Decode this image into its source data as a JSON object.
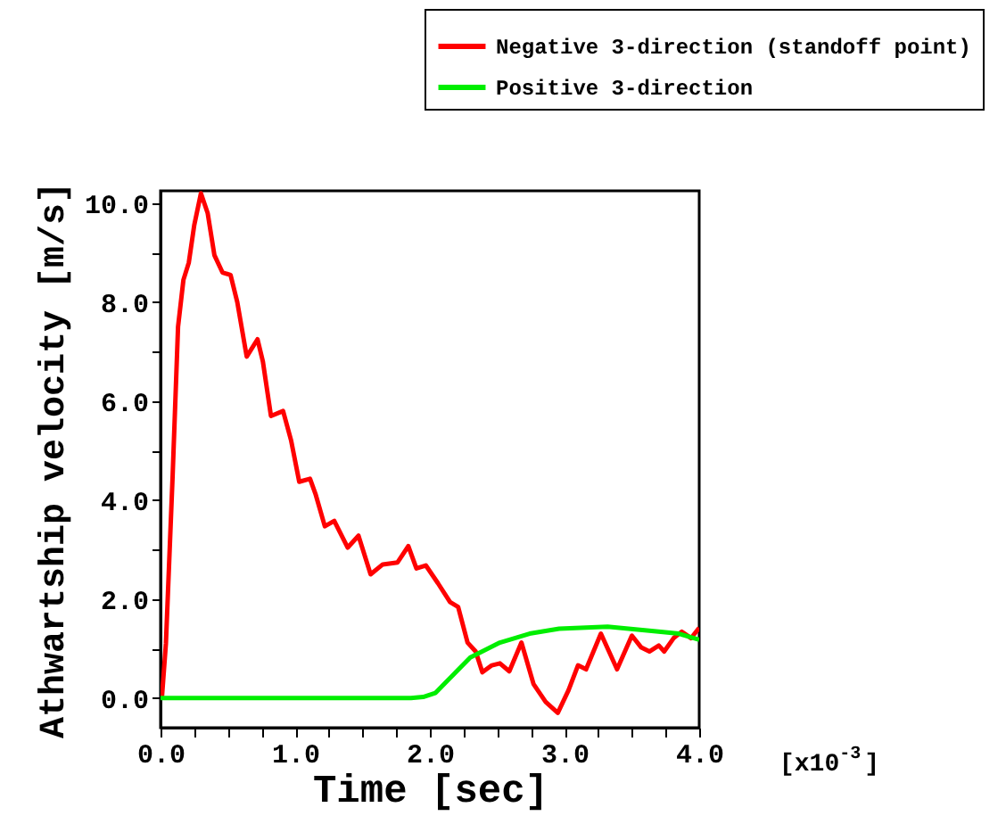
{
  "chart_data": {
    "type": "line",
    "xlabel": "Time [sec]",
    "ylabel": "Athwartship velocity [m/s]",
    "annotations": [
      "[x10$^{-3}$]"
    ],
    "xlim": [
      0,
      4.0
    ],
    "ylim": [
      -0.6,
      10.25
    ],
    "xticks": [
      {
        "value": 0,
        "label": "0.0"
      },
      {
        "value": 0.25,
        "label": null
      },
      {
        "value": 0.5,
        "label": null
      },
      {
        "value": 0.75,
        "label": null
      },
      {
        "value": 1,
        "label": "1.0"
      },
      {
        "value": 1.25,
        "label": null
      },
      {
        "value": 1.5,
        "label": null
      },
      {
        "value": 1.75,
        "label": null
      },
      {
        "value": 2,
        "label": "2.0"
      },
      {
        "value": 2.25,
        "label": null
      },
      {
        "value": 2.5,
        "label": null
      },
      {
        "value": 2.75,
        "label": null
      },
      {
        "value": 3,
        "label": "3.0"
      },
      {
        "value": 3.25,
        "label": null
      },
      {
        "value": 3.5,
        "label": null
      },
      {
        "value": 3.75,
        "label": null
      },
      {
        "value": 4,
        "label": "4.0"
      }
    ],
    "yticks": [
      {
        "value": 0,
        "label": "0.0"
      },
      {
        "value": 1,
        "label": null
      },
      {
        "value": 2,
        "label": "2.0"
      },
      {
        "value": 3,
        "label": null
      },
      {
        "value": 4,
        "label": "4.0"
      },
      {
        "value": 5,
        "label": null
      },
      {
        "value": 6,
        "label": "6.0"
      },
      {
        "value": 7,
        "label": null
      },
      {
        "value": 8,
        "label": "8.0"
      },
      {
        "value": 9,
        "label": null
      },
      {
        "value": 10,
        "label": "10.0"
      }
    ],
    "grid": false,
    "legend": "top right",
    "line_style": "solid",
    "marker": "none",
    "series": [
      {
        "name": "Negative 3-direction (standoff point)",
        "color": "#ff0000",
        "x": [
          0.01,
          0.04,
          0.09,
          0.13,
          0.17,
          0.21,
          0.25,
          0.3,
          0.35,
          0.4,
          0.46,
          0.52,
          0.57,
          0.64,
          0.72,
          0.76,
          0.82,
          0.91,
          0.97,
          1.03,
          1.11,
          1.15,
          1.22,
          1.29,
          1.39,
          1.47,
          1.56,
          1.65,
          1.76,
          1.84,
          1.9,
          1.97,
          2.06,
          2.15,
          2.21,
          2.28,
          2.34,
          2.39,
          2.46,
          2.52,
          2.59,
          2.68,
          2.77,
          2.86,
          2.95,
          3.03,
          3.1,
          3.16,
          3.27,
          3.39,
          3.5,
          3.57,
          3.63,
          3.7,
          3.74,
          3.81,
          3.87,
          3.94,
          4.0
        ],
        "values": [
          0.0,
          1.1,
          4.5,
          7.5,
          8.45,
          8.8,
          9.55,
          10.2,
          9.8,
          8.95,
          8.6,
          8.55,
          8.0,
          6.9,
          7.25,
          6.8,
          5.7,
          5.8,
          5.2,
          4.37,
          4.43,
          4.13,
          3.47,
          3.58,
          3.04,
          3.28,
          2.5,
          2.7,
          2.74,
          3.07,
          2.62,
          2.68,
          2.32,
          1.94,
          1.84,
          1.12,
          0.94,
          0.52,
          0.66,
          0.7,
          0.54,
          1.12,
          0.28,
          -0.08,
          -0.3,
          0.16,
          0.66,
          0.58,
          1.3,
          0.58,
          1.26,
          1.02,
          0.94,
          1.06,
          0.94,
          1.21,
          1.34,
          1.21,
          1.42
        ]
      },
      {
        "name": "Positive 3-direction",
        "color": "#00ee00",
        "x": [
          0.0,
          1.0,
          1.86,
          1.95,
          2.04,
          2.17,
          2.3,
          2.52,
          2.74,
          2.96,
          3.32,
          3.63,
          3.85,
          4.0
        ],
        "values": [
          0.0,
          0.0,
          0.0,
          0.02,
          0.1,
          0.46,
          0.82,
          1.12,
          1.3,
          1.4,
          1.44,
          1.36,
          1.3,
          1.18
        ]
      }
    ]
  }
}
